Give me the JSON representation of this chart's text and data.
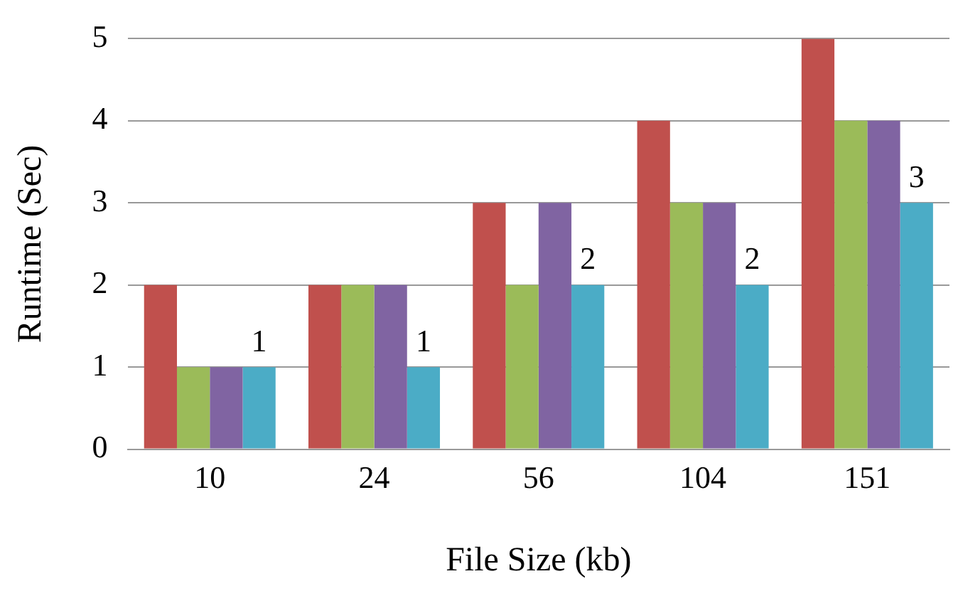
{
  "chart_data": {
    "type": "bar",
    "xlabel": "File Size (kb)",
    "ylabel": "Runtime (Sec)",
    "categories": [
      "10",
      "24",
      "56",
      "104",
      "151"
    ],
    "series": [
      {
        "color": "#c0504d",
        "values": [
          2,
          2,
          3,
          4,
          5
        ]
      },
      {
        "color": "#9bbb59",
        "values": [
          1,
          2,
          2,
          3,
          4
        ]
      },
      {
        "color": "#8064a2",
        "values": [
          1,
          2,
          3,
          3,
          4
        ]
      },
      {
        "color": "#4bacc6",
        "values": [
          1,
          1,
          2,
          2,
          3
        ],
        "value_labels": [
          "1",
          "1",
          "2",
          "2",
          "3"
        ]
      }
    ],
    "ylim": [
      0,
      5
    ],
    "yticks": [
      0,
      1,
      2,
      3,
      4,
      5
    ],
    "grid": "y",
    "legend": false
  }
}
